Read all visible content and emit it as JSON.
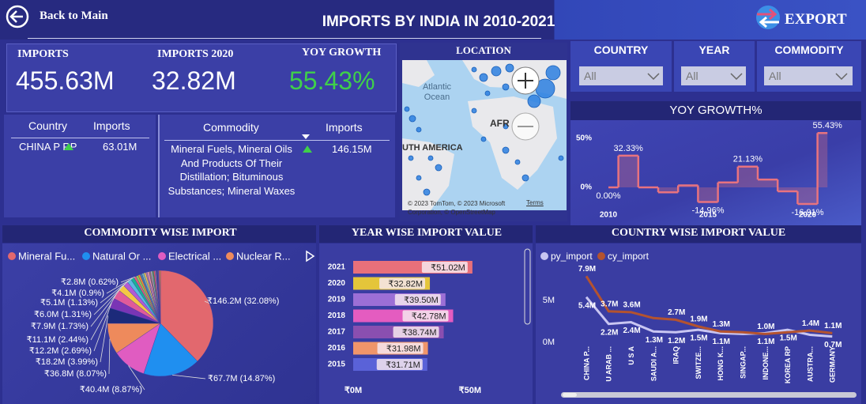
{
  "header": {
    "back": "Back to Main",
    "title": "IMPORTS BY INDIA IN 2010-2021",
    "export": "EXPORT"
  },
  "kpis": [
    {
      "label": "IMPORTS",
      "value": "455.63M"
    },
    {
      "label": "IMPORTS 2020",
      "value": "32.82M"
    },
    {
      "label": "YOY GROWTH",
      "value": "55.43%"
    }
  ],
  "country_table": {
    "columns": [
      "Country",
      "Imports"
    ],
    "rows": [
      [
        "CHINA P RP",
        "63.01M"
      ]
    ]
  },
  "commodity_table": {
    "columns": [
      "Commodity",
      "Imports"
    ],
    "rows": [
      [
        "Mineral Fuels, Mineral Oils And Products Of Their Distillation; Bituminous Substances; Mineral Waxes",
        "146.15M"
      ]
    ]
  },
  "map": {
    "title": "LOCATION",
    "labels": [
      "Atlantic Ocean",
      "AFR",
      "UTH AMERICA"
    ],
    "attribution": "© 2023 TomTom, © 2023 Microsoft Corporation, © OpenStreetMap",
    "terms": "Terms"
  },
  "slicers": [
    {
      "label": "COUNTRY",
      "value": "All"
    },
    {
      "label": "YEAR",
      "value": "All"
    },
    {
      "label": "COMMODITY",
      "value": "All"
    }
  ],
  "chart_data": [
    {
      "type": "step",
      "title": "YOY GROWTH%",
      "x": [
        2010,
        2011,
        2012,
        2013,
        2014,
        2015,
        2016,
        2017,
        2018,
        2019,
        2020,
        2021
      ],
      "values": [
        0,
        32.33,
        0,
        -5,
        2,
        -14.96,
        5,
        21.13,
        8,
        -4,
        -16.91,
        55.43
      ],
      "value_labels": [
        "0.00%",
        "32.33%",
        null,
        null,
        null,
        "-14.96%",
        null,
        "21.13%",
        null,
        null,
        "-16.91%",
        "55.43%"
      ],
      "color": "#e8737f",
      "xlim": [
        2009.5,
        2021.5
      ],
      "xticks": [
        2010,
        2015,
        2020
      ],
      "ylim": [
        -25,
        60
      ],
      "yticks": [
        {
          "value": 0,
          "label": "0%"
        },
        {
          "value": 50,
          "label": "50%"
        }
      ]
    },
    {
      "type": "pie",
      "title": "COMMODITY WISE IMPORT",
      "categories": [
        "Mineral Fu...",
        "Natural Or ...",
        "Electrical ...",
        "Nuclear R...",
        null,
        null,
        null,
        null,
        null,
        null,
        null,
        null,
        null,
        null,
        null,
        null,
        null,
        null,
        null,
        null,
        null,
        null,
        null,
        null,
        null,
        null,
        null,
        null
      ],
      "values": [
        146.2,
        67.7,
        40.4,
        36.8,
        18.2,
        12.2,
        11.1,
        7.9,
        6.0,
        5.1,
        4.1,
        2.8,
        2.6,
        2.5,
        2.4,
        2.3,
        2.2,
        2.1,
        2.0,
        1.9,
        1.8,
        1.7,
        1.6,
        1.5,
        1.4,
        1.3,
        1.2,
        1.1
      ],
      "value_labels": [
        "₹146.2M (32.08%)",
        "₹67.7M (14.87%)",
        "₹40.4M (8.87%)",
        "₹36.8M (8.07%)",
        "₹18.2M (3.99%)",
        "₹12.2M (2.69%)",
        "₹11.1M (2.44%)",
        "₹7.9M (1.73%)",
        "₹6.0M (1.31%)",
        "₹5.1M (1.13%)",
        "₹4.1M (0.9%)",
        "₹2.8M (0.62%)",
        null,
        null,
        null,
        null,
        null,
        null,
        null,
        null,
        null,
        null,
        null,
        null,
        null,
        null,
        null,
        null
      ],
      "colors": [
        "#e2686e",
        "#1f8ff0",
        "#e05cc1",
        "#ee8a5c",
        "#1c2a7a",
        "#7a35b5",
        "#e05a9a",
        "#f4c744",
        "#b25ad3",
        "#5bb9e0",
        "#1ab394",
        "#e0607a",
        "#8fd14f",
        "#f28e2b",
        "#4e79a7",
        "#76b7b2",
        "#edc948",
        "#b07aa1",
        "#ff9da7",
        "#9c755f",
        "#bab0ab",
        "#59a14f",
        "#e15759",
        "#af7aa1",
        "#2f4b7c",
        "#665191",
        "#d45087",
        "#ffa600"
      ]
    },
    {
      "type": "hbar",
      "title": "YEAR WISE IMPORT VALUE",
      "categories": [
        "2021",
        "2020",
        "2019",
        "2018",
        "2017",
        "2016",
        "2015"
      ],
      "values": [
        51.02,
        32.82,
        39.5,
        42.78,
        38.74,
        31.98,
        31.71
      ],
      "value_labels": [
        "₹51.02M",
        "₹32.82M",
        "₹39.50M",
        "₹42.78M",
        "₹38.74M",
        "₹31.98M",
        "₹31.71M"
      ],
      "colors": [
        "#e8707a",
        "#e4c53a",
        "#9c6fd6",
        "#e45cc0",
        "#8a4fb0",
        "#f0956a",
        "#5a62d8"
      ],
      "xlim": [
        0,
        70
      ],
      "xticks": [
        {
          "value": 0,
          "label": "₹0M"
        },
        {
          "value": 50,
          "label": "₹50M"
        }
      ]
    },
    {
      "type": "line",
      "title": "COUNTRY WISE IMPORT VALUE",
      "categories": [
        "CHINA P...",
        "U ARAB ...",
        "U S A",
        "SAUDI A...",
        "IRAQ",
        "SWITZE...",
        "HONG K...",
        "SINGAP...",
        "INDONE...",
        "KOREA RP",
        "AUSTRA...",
        "GERMANY"
      ],
      "series": [
        {
          "name": "py_import",
          "color": "#c9c6f2",
          "values": [
            5.4,
            2.2,
            2.4,
            1.3,
            1.2,
            1.5,
            1.1,
            1.0,
            1.1,
            1.5,
            0.9,
            0.7
          ],
          "value_labels": [
            "5.4M",
            "2.2M",
            "2.4M",
            "1.3M",
            "1.2M",
            "1.5M",
            "1.1M",
            null,
            "1.1M",
            "1.5M",
            null,
            "0.7M"
          ]
        },
        {
          "name": "cy_import",
          "color": "#b4532f",
          "values": [
            7.9,
            3.7,
            3.6,
            2.9,
            2.7,
            1.9,
            1.3,
            1.2,
            1.0,
            1.2,
            1.4,
            1.1
          ],
          "value_labels": [
            "7.9M",
            "3.7M",
            "3.6M",
            null,
            "2.7M",
            "1.9M",
            "1.3M",
            null,
            "1.0M",
            null,
            "1.4M",
            "1.1M"
          ]
        }
      ],
      "ylim": [
        0,
        8.2
      ],
      "yticks": [
        {
          "value": 0,
          "label": "0M"
        },
        {
          "value": 5,
          "label": "5M"
        }
      ]
    }
  ]
}
